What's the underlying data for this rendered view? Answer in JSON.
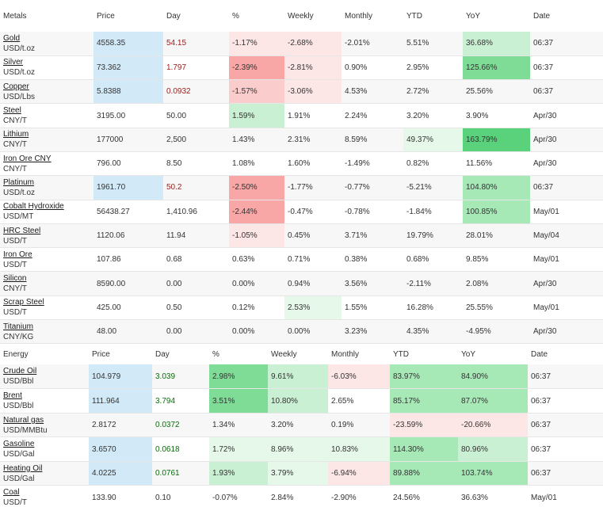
{
  "metals": {
    "headers": [
      "Metals",
      "Price",
      "Day",
      "%",
      "Weekly",
      "Monthly",
      "YTD",
      "YoY",
      "Date"
    ],
    "rows": [
      {
        "name": "Gold",
        "unit": "USD/t.oz",
        "price": "4558.35",
        "day": "54.15",
        "pct": "-1.17%",
        "weekly": "-2.68%",
        "monthly": "-2.01%",
        "ytd": "5.51%",
        "yoy": "36.68%",
        "date": "06:37"
      },
      {
        "name": "Silver",
        "unit": "USD/t.oz",
        "price": "73.362",
        "day": "1.797",
        "pct": "-2.39%",
        "weekly": "-2.81%",
        "monthly": "0.90%",
        "ytd": "2.95%",
        "yoy": "125.66%",
        "date": "06:37"
      },
      {
        "name": "Copper",
        "unit": "USD/Lbs",
        "price": "5.8388",
        "day": "0.0932",
        "pct": "-1.57%",
        "weekly": "-3.06%",
        "monthly": "4.53%",
        "ytd": "2.72%",
        "yoy": "25.56%",
        "date": "06:37"
      },
      {
        "name": "Steel",
        "unit": "CNY/T",
        "price": "3195.00",
        "day": "50.00",
        "pct": "1.59%",
        "weekly": "1.91%",
        "monthly": "2.24%",
        "ytd": "3.20%",
        "yoy": "3.90%",
        "date": "Apr/30"
      },
      {
        "name": "Lithium",
        "unit": "CNY/T",
        "price": "177000",
        "day": "2,500",
        "pct": "1.43%",
        "weekly": "2.31%",
        "monthly": "8.59%",
        "ytd": "49.37%",
        "yoy": "163.79%",
        "date": "Apr/30"
      },
      {
        "name": "Iron Ore CNY",
        "unit": "CNY/T",
        "price": "796.00",
        "day": "8.50",
        "pct": "1.08%",
        "weekly": "1.60%",
        "monthly": "-1.49%",
        "ytd": "0.82%",
        "yoy": "11.56%",
        "date": "Apr/30"
      },
      {
        "name": "Platinum",
        "unit": "USD/t.oz",
        "price": "1961.70",
        "day": "50.2",
        "pct": "-2.50%",
        "weekly": "-1.77%",
        "monthly": "-0.77%",
        "ytd": "-5.21%",
        "yoy": "104.80%",
        "date": "06:37"
      },
      {
        "name": "Cobalt Hydroxide",
        "unit": "USD/MT",
        "price": "56438.27",
        "day": "1,410.96",
        "pct": "-2.44%",
        "weekly": "-0.47%",
        "monthly": "-0.78%",
        "ytd": "-1.84%",
        "yoy": "100.85%",
        "date": "May/01"
      },
      {
        "name": "HRC Steel",
        "unit": "USD/T",
        "price": "1120.06",
        "day": "11.94",
        "pct": "-1.05%",
        "weekly": "0.45%",
        "monthly": "3.71%",
        "ytd": "19.79%",
        "yoy": "28.01%",
        "date": "May/04"
      },
      {
        "name": "Iron Ore",
        "unit": "USD/T",
        "price": "107.86",
        "day": "0.68",
        "pct": "0.63%",
        "weekly": "0.71%",
        "monthly": "0.38%",
        "ytd": "0.68%",
        "yoy": "9.85%",
        "date": "May/01"
      },
      {
        "name": "Silicon",
        "unit": "CNY/T",
        "price": "8590.00",
        "day": "0.00",
        "pct": "0.00%",
        "weekly": "0.94%",
        "monthly": "3.56%",
        "ytd": "-2.11%",
        "yoy": "2.08%",
        "date": "Apr/30"
      },
      {
        "name": "Scrap Steel",
        "unit": "USD/T",
        "price": "425.00",
        "day": "0.50",
        "pct": "0.12%",
        "weekly": "2.53%",
        "monthly": "1.55%",
        "ytd": "16.28%",
        "yoy": "25.55%",
        "date": "May/01"
      },
      {
        "name": "Titanium",
        "unit": "CNY/KG",
        "price": "48.00",
        "day": "0.00",
        "pct": "0.00%",
        "weekly": "0.00%",
        "monthly": "3.23%",
        "ytd": "4.35%",
        "yoy": "-4.95%",
        "date": "Apr/30"
      }
    ]
  },
  "energy": {
    "headers": [
      "Energy",
      "Price",
      "Day",
      "%",
      "Weekly",
      "Monthly",
      "YTD",
      "YoY",
      "Date"
    ],
    "rows": [
      {
        "name": "Crude Oil",
        "unit": "USD/Bbl",
        "price": "104.979",
        "day": "3.039",
        "pct": "2.98%",
        "weekly": "9.61%",
        "monthly": "-6.03%",
        "ytd": "83.97%",
        "yoy": "84.90%",
        "date": "06:37"
      },
      {
        "name": "Brent",
        "unit": "USD/Bbl",
        "price": "111.964",
        "day": "3.794",
        "pct": "3.51%",
        "weekly": "10.80%",
        "monthly": "2.65%",
        "ytd": "85.17%",
        "yoy": "87.07%",
        "date": "06:37"
      },
      {
        "name": "Natural gas",
        "unit": "USD/MMBtu",
        "price": "2.8172",
        "day": "0.0372",
        "pct": "1.34%",
        "weekly": "3.20%",
        "monthly": "0.19%",
        "ytd": "-23.59%",
        "yoy": "-20.66%",
        "date": "06:37"
      },
      {
        "name": "Gasoline",
        "unit": "USD/Gal",
        "price": "3.6570",
        "day": "0.0618",
        "pct": "1.72%",
        "weekly": "8.96%",
        "monthly": "10.83%",
        "ytd": "114.30%",
        "yoy": "80.96%",
        "date": "06:37"
      },
      {
        "name": "Heating Oil",
        "unit": "USD/Gal",
        "price": "4.0225",
        "day": "0.0761",
        "pct": "1.93%",
        "weekly": "3.79%",
        "monthly": "-6.94%",
        "ytd": "89.88%",
        "yoy": "103.74%",
        "date": "06:37"
      },
      {
        "name": "Coal",
        "unit": "USD/T",
        "price": "133.90",
        "day": "0.10",
        "pct": "-0.07%",
        "weekly": "2.84%",
        "monthly": "-2.90%",
        "ytd": "24.56%",
        "yoy": "36.63%",
        "date": "May/01"
      }
    ]
  }
}
